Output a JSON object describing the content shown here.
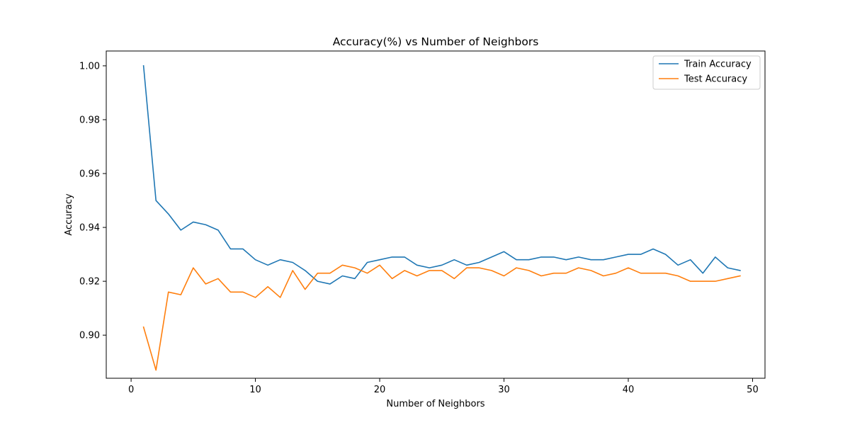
{
  "chart_data": {
    "type": "line",
    "title": "Accuracy(%) vs Number of Neighbors",
    "xlabel": "Number of Neighbors",
    "ylabel": "Accuracy",
    "xlim": [
      -2,
      51
    ],
    "ylim": [
      0.884,
      1.0055
    ],
    "xticks": [
      0,
      10,
      20,
      30,
      40,
      50
    ],
    "yticks": [
      0.9,
      0.92,
      0.94,
      0.96,
      0.98,
      1.0
    ],
    "ytick_labels": [
      "0.90",
      "0.92",
      "0.94",
      "0.96",
      "0.98",
      "1.00"
    ],
    "grid": false,
    "legend_position": "upper right",
    "x": [
      1,
      2,
      3,
      4,
      5,
      6,
      7,
      8,
      9,
      10,
      11,
      12,
      13,
      14,
      15,
      16,
      17,
      18,
      19,
      20,
      21,
      22,
      23,
      24,
      25,
      26,
      27,
      28,
      29,
      30,
      31,
      32,
      33,
      34,
      35,
      36,
      37,
      38,
      39,
      40,
      41,
      42,
      43,
      44,
      45,
      46,
      47,
      48,
      49
    ],
    "series": [
      {
        "name": "Train Accuracy",
        "color": "#1f77b4",
        "values": [
          1.0,
          0.95,
          0.945,
          0.939,
          0.942,
          0.941,
          0.939,
          0.932,
          0.932,
          0.928,
          0.926,
          0.928,
          0.927,
          0.924,
          0.92,
          0.919,
          0.922,
          0.921,
          0.927,
          0.928,
          0.929,
          0.929,
          0.926,
          0.925,
          0.926,
          0.928,
          0.926,
          0.927,
          0.929,
          0.931,
          0.928,
          0.928,
          0.929,
          0.929,
          0.928,
          0.929,
          0.928,
          0.928,
          0.929,
          0.93,
          0.93,
          0.932,
          0.93,
          0.926,
          0.928,
          0.923,
          0.929,
          0.925,
          0.924
        ]
      },
      {
        "name": "Test Accuracy",
        "color": "#ff7f0e",
        "values": [
          0.903,
          0.887,
          0.916,
          0.915,
          0.925,
          0.919,
          0.921,
          0.916,
          0.916,
          0.914,
          0.918,
          0.914,
          0.924,
          0.917,
          0.923,
          0.923,
          0.926,
          0.925,
          0.923,
          0.926,
          0.921,
          0.924,
          0.922,
          0.924,
          0.924,
          0.921,
          0.925,
          0.925,
          0.924,
          0.922,
          0.925,
          0.924,
          0.922,
          0.923,
          0.923,
          0.925,
          0.924,
          0.922,
          0.923,
          0.925,
          0.923,
          0.923,
          0.923,
          0.922,
          0.92,
          0.92,
          0.92,
          0.921,
          0.922
        ]
      }
    ]
  }
}
